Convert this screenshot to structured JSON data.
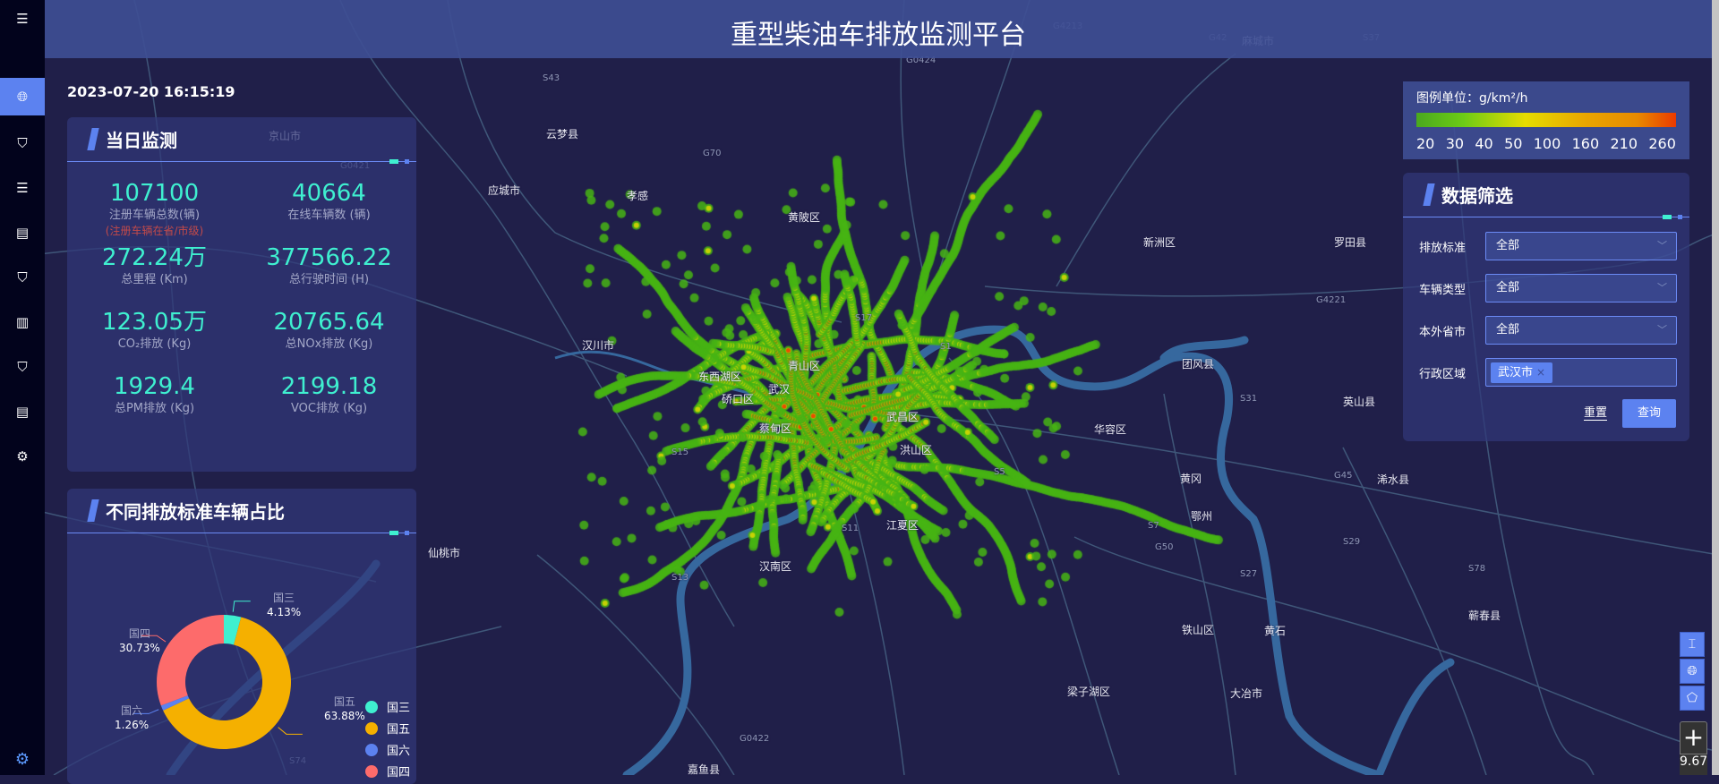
{
  "header": {
    "title": "重型柴油车排放监测平台"
  },
  "datetime": "2023-07-20 16:15:19",
  "sidebar": {
    "items": [
      {
        "icon": "menu-icon"
      },
      {
        "icon": "globe-icon",
        "active": true
      },
      {
        "icon": "shield-search-icon"
      },
      {
        "icon": "list-icon"
      },
      {
        "icon": "document-list-icon"
      },
      {
        "icon": "shield-search-icon"
      },
      {
        "icon": "bar-chart-icon"
      },
      {
        "icon": "shield-search-icon"
      },
      {
        "icon": "document-list-icon"
      },
      {
        "icon": "settings-icon"
      },
      {
        "icon": "settings-blue-icon"
      }
    ]
  },
  "daily": {
    "title": "当日监测",
    "stats": [
      {
        "value": "107100",
        "label": "注册车辆总数(辆)",
        "note": "(注册车辆在省/市级)"
      },
      {
        "value": "40664",
        "label": "在线车辆数 (辆)"
      },
      {
        "value": "272.24万",
        "label": "总里程 (Km)"
      },
      {
        "value": "377566.22",
        "label": "总行驶时间 (H)"
      },
      {
        "value": "123.05万",
        "label": "CO₂排放 (Kg)"
      },
      {
        "value": "20765.64",
        "label": "总NOx排放 (Kg)"
      },
      {
        "value": "1929.4",
        "label": "总PM排放 (Kg)"
      },
      {
        "value": "2199.18",
        "label": "VOC排放 (Kg)"
      }
    ]
  },
  "ratio": {
    "title": "不同排放标准车辆占比"
  },
  "chart_data": {
    "type": "pie",
    "donut": true,
    "categories": [
      "国三",
      "国五",
      "国六",
      "国四"
    ],
    "values": [
      4.13,
      63.88,
      1.26,
      30.73
    ],
    "labels": [
      "4.13%",
      "63.88%",
      "1.26%",
      "30.73%"
    ],
    "colors": [
      "#3ff0d0",
      "#f5b000",
      "#5c82f0",
      "#fd6b6b"
    ],
    "legend": "bottom-right"
  },
  "legend": {
    "unit": "图例单位：g/km²/h",
    "ticks": [
      "20",
      "30",
      "40",
      "50",
      "100",
      "160",
      "210",
      "260"
    ],
    "colors": [
      "#4aa81e",
      "#e6dc00",
      "#ea3a00"
    ]
  },
  "filter": {
    "title": "数据筛选",
    "fields": [
      {
        "label": "排放标准",
        "value": "全部"
      },
      {
        "label": "车辆类型",
        "value": "全部"
      },
      {
        "label": "本外省市",
        "value": "全部"
      },
      {
        "label": "行政区域",
        "tag": "武汉市",
        "tag_close": "×"
      }
    ],
    "reset": "重置",
    "query": "查询"
  },
  "map": {
    "places": [
      "京山市",
      "云梦县",
      "应城市",
      "孝感",
      "汉川市",
      "黄陂区",
      "东西湖区",
      "青山区",
      "硚口区",
      "武汉",
      "新洲区",
      "团风县",
      "麻城市",
      "罗田县",
      "英山县",
      "蔡甸区",
      "武昌区",
      "洪山区",
      "华容区",
      "黄冈",
      "浠水县",
      "鄂州",
      "江夏区",
      "汉南区",
      "铁山区",
      "黄石",
      "蕲春县",
      "梁子湖区",
      "大冶市",
      "嘉鱼县",
      "仙桃市"
    ],
    "roads": [
      "G0421",
      "S43",
      "G0424",
      "G70",
      "G4213",
      "G42",
      "S37",
      "G4221",
      "S29",
      "S31",
      "G45",
      "G50",
      "S78",
      "S27",
      "S7",
      "S74",
      "G0422",
      "S13",
      "S15",
      "S17",
      "S1",
      "S5",
      "S11"
    ],
    "controls": [
      "ruler-icon",
      "globe-icon",
      "layers-icon"
    ],
    "zoom_in": "+",
    "zoom_level": "9.67"
  },
  "colors": {
    "accent": "#5c82f0",
    "teal": "#3ff0d0",
    "background": "#201f49"
  }
}
